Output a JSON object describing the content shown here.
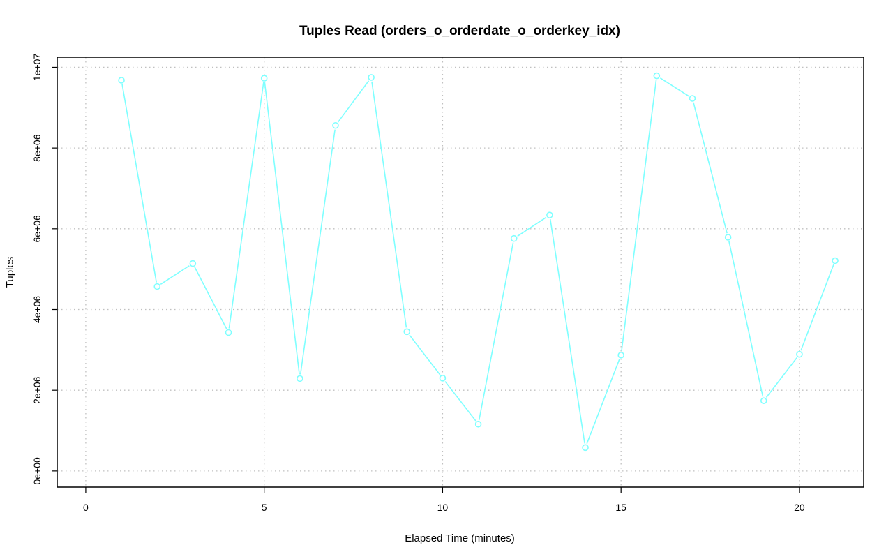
{
  "chart_data": {
    "type": "line",
    "title": "Tuples Read (orders_o_orderdate_o_orderkey_idx)",
    "xlabel": "Elapsed Time (minutes)",
    "ylabel": "Tuples",
    "xlim": [
      -0.8,
      21.8
    ],
    "ylim": [
      -400000,
      10250000
    ],
    "x_ticks": [
      0,
      5,
      10,
      15,
      20
    ],
    "x_tick_labels": [
      "0",
      "5",
      "10",
      "15",
      "20"
    ],
    "y_ticks": [
      0,
      2000000,
      4000000,
      6000000,
      8000000,
      10000000
    ],
    "y_tick_labels": [
      "0e+00",
      "2e+06",
      "4e+06",
      "6e+06",
      "8e+06",
      "1e+07"
    ],
    "grid": true,
    "legend": "none",
    "series_color": "#7fffff",
    "series": [
      {
        "x": [
          1,
          2,
          3,
          4,
          5,
          6,
          7,
          8,
          9,
          10,
          11,
          12,
          13,
          14,
          15,
          16,
          17,
          18,
          19,
          20,
          21
        ],
        "values": [
          9680000,
          4570000,
          5140000,
          3430000,
          9730000,
          2290000,
          8560000,
          9750000,
          3450000,
          2300000,
          1160000,
          5760000,
          6340000,
          580000,
          2870000,
          9790000,
          9230000,
          5790000,
          1740000,
          2890000,
          5210000
        ]
      }
    ]
  }
}
